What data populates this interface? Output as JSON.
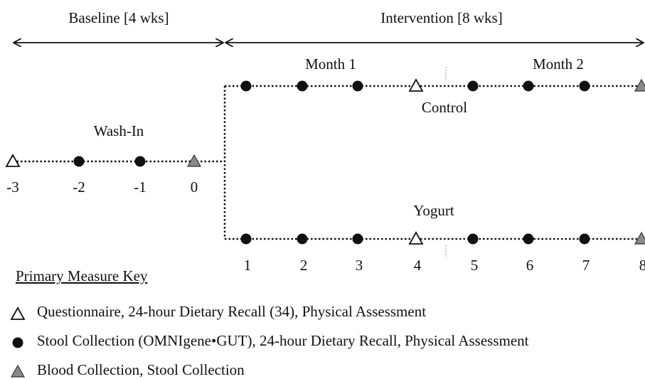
{
  "header": {
    "baseline": "Baseline [4 wks]",
    "intervention": "Intervention [8 wks]"
  },
  "months": [
    "Month 1",
    "Month 2"
  ],
  "arms": {
    "control": "Control",
    "yogurt": "Yogurt"
  },
  "wash_in": "Wash-In",
  "baseline_weeks": [
    "-3",
    "-2",
    "-1",
    "0"
  ],
  "intervention_weeks": [
    "1",
    "2",
    "3",
    "4",
    "5",
    "6",
    "7",
    "8"
  ],
  "key": {
    "title": "Primary Measure Key",
    "items": [
      "Questionnaire, 24-hour Dietary Recall (34), Physical Assessment",
      "Stool Collection (OMNIgene•GUT), 24-hour Dietary Recall, Physical Assessment",
      "Blood Collection, Stool Collection"
    ]
  }
}
